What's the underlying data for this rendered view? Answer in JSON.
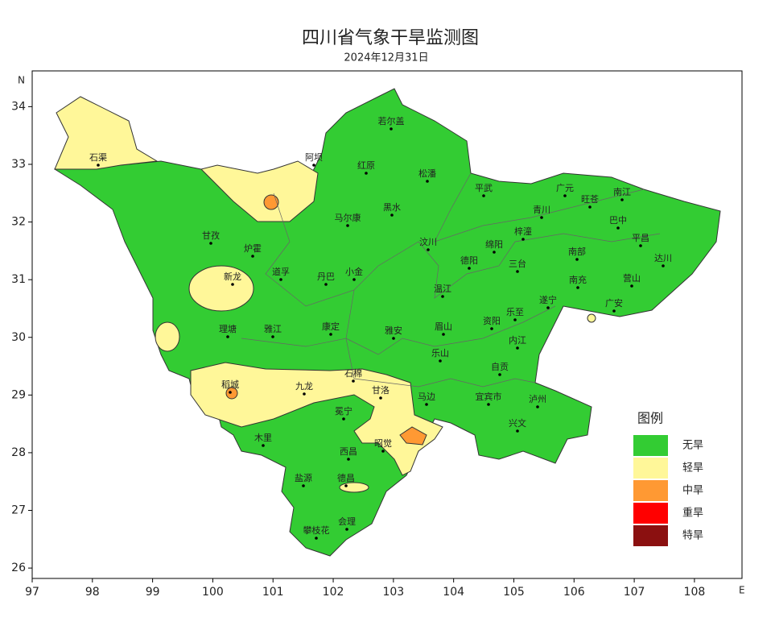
{
  "title": "四川省气象干旱监测图",
  "subtitle": "2024年12月31日",
  "axes": {
    "x_label": "E",
    "y_label": "N",
    "xlim": [
      97,
      108.79
    ],
    "ylim": [
      25.82,
      34.62
    ],
    "xticks": [
      97,
      98,
      99,
      100,
      101,
      102,
      103,
      104,
      105,
      106,
      107,
      108
    ],
    "yticks": [
      26,
      27,
      28,
      29,
      30,
      31,
      32,
      33,
      34
    ]
  },
  "legend": {
    "title": "图例",
    "items": [
      {
        "label": "无旱",
        "color": "#33cc33"
      },
      {
        "label": "轻旱",
        "color": "#fff799"
      },
      {
        "label": "中旱",
        "color": "#ff9933"
      },
      {
        "label": "重旱",
        "color": "#ff0000"
      },
      {
        "label": "特旱",
        "color": "#8b1010"
      }
    ]
  },
  "cities": [
    "石渠",
    "若尔盖",
    "阿坝",
    "红原",
    "松潘",
    "平武",
    "广元",
    "旺苍",
    "南江",
    "青川",
    "马尔康",
    "黑水",
    "巴中",
    "平昌",
    "甘孜",
    "炉霍",
    "汶川",
    "绵阳",
    "梓潼",
    "南部",
    "达川",
    "道孚",
    "新龙",
    "丹巴",
    "小金",
    "德阳",
    "三台",
    "南充",
    "营山",
    "温江",
    "遂宁",
    "广安",
    "乐至",
    "雅江",
    "康定",
    "理塘",
    "雅安",
    "眉山",
    "资阳",
    "内江",
    "乐山",
    "自贡",
    "稻城",
    "九龙",
    "石棉",
    "甘洛",
    "马边",
    "宜宾市",
    "泸州",
    "冕宁",
    "兴文",
    "木里",
    "西昌",
    "昭觉",
    "盐源",
    "德昌",
    "会理",
    "攀枝花"
  ]
}
